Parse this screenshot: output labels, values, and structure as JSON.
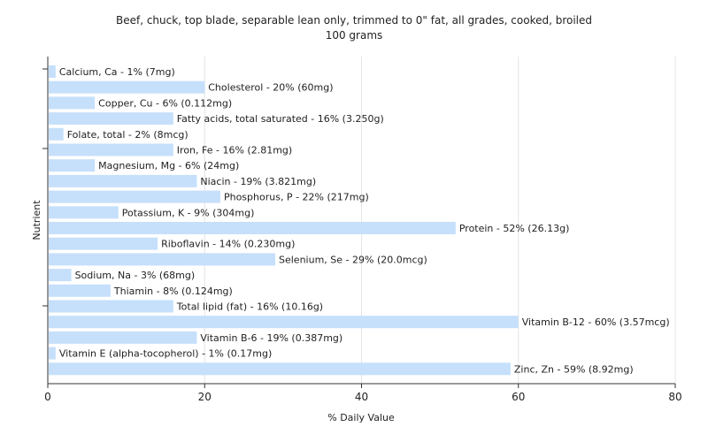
{
  "chart_data": {
    "type": "bar",
    "orientation": "horizontal",
    "title": "Beef, chuck, top blade, separable lean only, trimmed to 0\" fat, all grades, cooked, broiled",
    "subtitle": "100 grams",
    "xlabel": "% Daily Value",
    "ylabel": "Nutrient",
    "xlim": [
      0,
      80
    ],
    "xticks": [
      0,
      20,
      40,
      60,
      80
    ],
    "grid": true,
    "bar_color": "#c6e0fb",
    "categories": [
      "Calcium, Ca",
      "Cholesterol",
      "Copper, Cu",
      "Fatty acids, total saturated",
      "Folate, total",
      "Iron, Fe",
      "Magnesium, Mg",
      "Niacin",
      "Phosphorus, P",
      "Potassium, K",
      "Protein",
      "Riboflavin",
      "Selenium, Se",
      "Sodium, Na",
      "Thiamin",
      "Total lipid (fat)",
      "Vitamin B-12",
      "Vitamin B-6",
      "Vitamin E (alpha-tocopherol)",
      "Zinc, Zn"
    ],
    "values": [
      1,
      20,
      6,
      16,
      2,
      16,
      6,
      19,
      22,
      9,
      52,
      14,
      29,
      3,
      8,
      16,
      60,
      19,
      1,
      59
    ],
    "labels": [
      "Calcium, Ca - 1% (7mg)",
      "Cholesterol - 20% (60mg)",
      "Copper, Cu - 6% (0.112mg)",
      "Fatty acids, total saturated - 16% (3.250g)",
      "Folate, total - 2% (8mcg)",
      "Iron, Fe - 16% (2.81mg)",
      "Magnesium, Mg - 6% (24mg)",
      "Niacin - 19% (3.821mg)",
      "Phosphorus, P - 22% (217mg)",
      "Potassium, K - 9% (304mg)",
      "Protein - 52% (26.13g)",
      "Riboflavin - 14% (0.230mg)",
      "Selenium, Se - 29% (20.0mcg)",
      "Sodium, Na - 3% (68mg)",
      "Thiamin - 8% (0.124mg)",
      "Total lipid (fat) - 16% (10.16g)",
      "Vitamin B-12 - 60% (3.57mcg)",
      "Vitamin B-6 - 19% (0.387mg)",
      "Vitamin E (alpha-tocopherol) - 1% (0.17mg)",
      "Zinc, Zn - 59% (8.92mg)"
    ]
  }
}
